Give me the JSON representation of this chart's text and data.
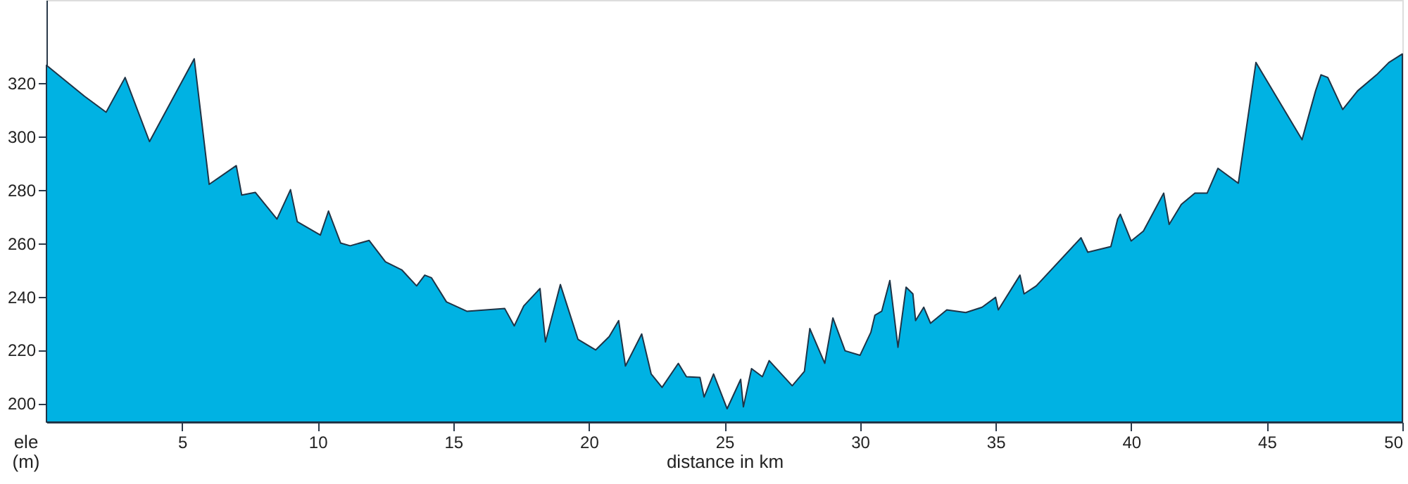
{
  "chart_data": {
    "type": "area",
    "xlabel": "distance in km",
    "ylabel": "ele (m)",
    "xlim": [
      0,
      50
    ],
    "ylim": [
      193,
      351
    ],
    "xticks": [
      5,
      10,
      15,
      20,
      25,
      30,
      35,
      40,
      45,
      50
    ],
    "yticks": [
      200,
      220,
      240,
      260,
      280,
      300,
      320
    ],
    "grid": false,
    "series": [
      {
        "color": "#00b2e3",
        "x": [
          0,
          1.4,
          2.2,
          2.9,
          3.8,
          5.45,
          6.0,
          7.0,
          7.2,
          7.7,
          8.5,
          9.0,
          9.25,
          10.1,
          10.4,
          10.85,
          11.2,
          11.9,
          12.5,
          13.1,
          13.65,
          13.95,
          14.2,
          14.75,
          15.5,
          16.9,
          17.25,
          17.6,
          18.2,
          18.4,
          18.95,
          19.6,
          20.25,
          20.75,
          21.1,
          21.35,
          21.95,
          22.3,
          22.7,
          23.3,
          23.6,
          24.1,
          24.25,
          24.6,
          25.1,
          25.6,
          25.7,
          26.0,
          26.4,
          26.65,
          27.5,
          27.95,
          28.15,
          28.7,
          29.0,
          29.45,
          30.0,
          30.4,
          30.55,
          30.8,
          31.1,
          31.4,
          31.7,
          31.95,
          32.05,
          32.35,
          32.6,
          33.2,
          33.9,
          34.5,
          35.0,
          35.1,
          35.9,
          36.05,
          36.5,
          38.15,
          38.4,
          39.25,
          39.5,
          39.6,
          40.0,
          40.45,
          41.2,
          41.4,
          41.85,
          42.35,
          42.8,
          43.2,
          43.95,
          44.6,
          46.3,
          46.8,
          47.0,
          47.25,
          47.8,
          48.35,
          49.05,
          49.5,
          50
        ],
        "values": [
          326.6,
          315,
          309,
          322,
          298,
          329,
          282,
          289,
          278,
          279,
          269,
          280,
          268,
          263,
          272,
          260,
          259,
          261,
          253,
          250,
          244,
          248,
          247,
          238,
          234.5,
          235.5,
          229,
          236.5,
          243,
          223,
          244.5,
          224,
          220,
          225,
          231,
          214,
          226,
          211,
          206,
          215,
          210,
          209.7,
          202.4,
          211,
          198,
          209,
          198.7,
          213,
          210,
          216,
          206.6,
          212,
          228,
          215,
          232,
          219.7,
          218,
          226.6,
          233,
          234.5,
          246,
          221,
          243.5,
          241,
          231,
          236,
          230,
          235,
          234,
          236,
          239.7,
          235,
          248,
          241,
          244,
          262,
          256.6,
          258.7,
          269,
          270.8,
          260.8,
          264.5,
          278.7,
          267,
          274.5,
          278.7,
          278.7,
          288,
          282.4,
          327.6,
          298.7,
          317,
          323,
          322,
          310,
          317,
          323,
          327.6,
          330.8
        ]
      }
    ]
  }
}
